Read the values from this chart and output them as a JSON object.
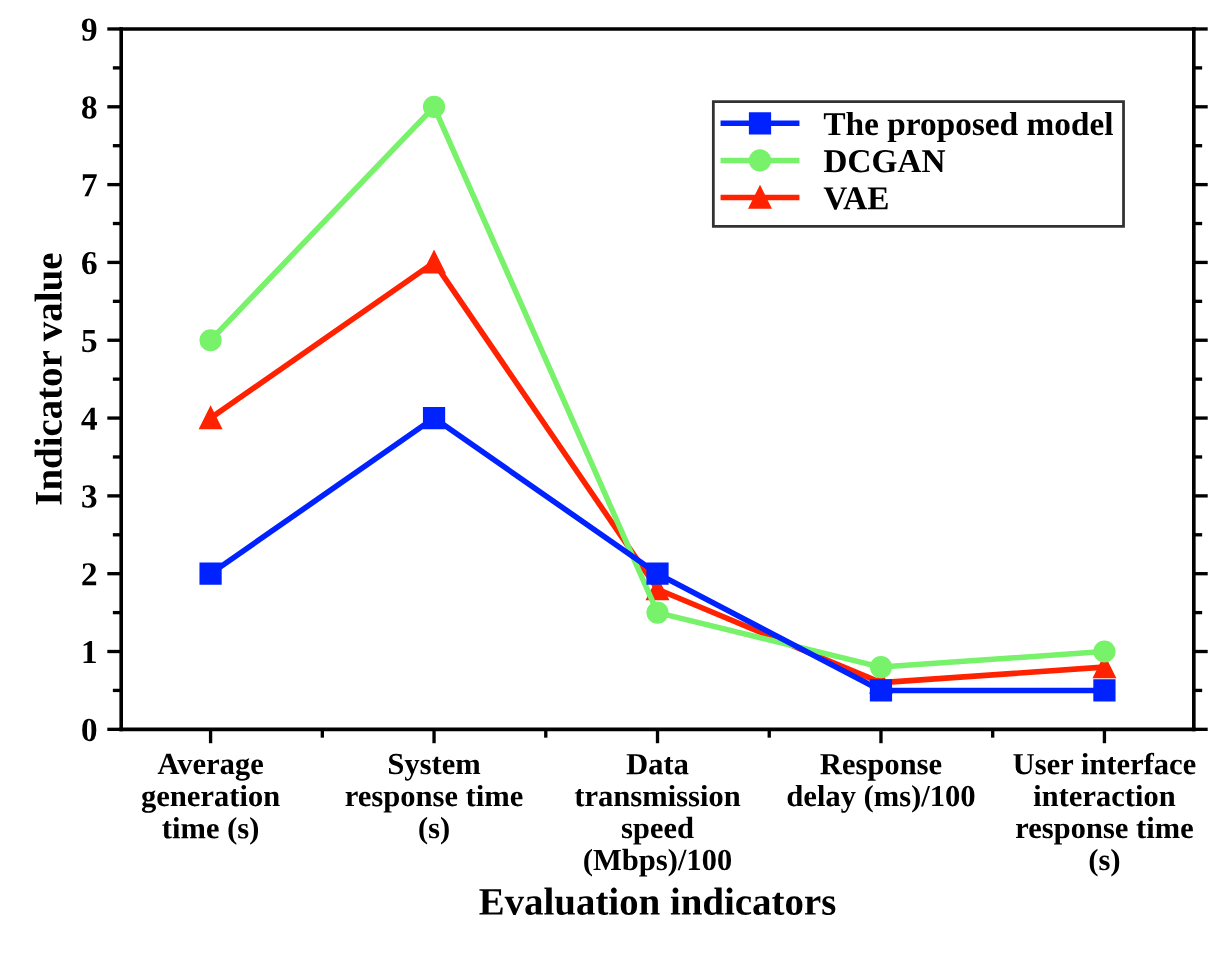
{
  "chart_data": {
    "type": "line",
    "xlabel": "Evaluation indicators",
    "ylabel": "Indicator value",
    "categories": [
      "Average\ngeneration\ntime (s)",
      "System\nresponse time\n(s)",
      "Data\ntransmission\nspeed\n(Mbps)/100",
      "Response\ndelay (ms)/100",
      "User interface\ninteraction\nresponse time\n(s)"
    ],
    "series": [
      {
        "name": "The proposed model",
        "color": "#0022ff",
        "marker": "square",
        "values": [
          2,
          4,
          2,
          0.5,
          0.5
        ]
      },
      {
        "name": "DCGAN",
        "color": "#77f26a",
        "marker": "circle",
        "values": [
          5,
          8,
          1.5,
          0.8,
          1.0
        ]
      },
      {
        "name": "VAE",
        "color": "#ff2200",
        "marker": "triangle",
        "values": [
          4,
          6,
          1.8,
          0.6,
          0.8
        ]
      }
    ],
    "ylim": [
      0,
      9
    ],
    "yticks": [
      0,
      1,
      2,
      3,
      4,
      5,
      6,
      7,
      8,
      9
    ],
    "grid": false,
    "legend": "top right",
    "line_style": "solid"
  }
}
